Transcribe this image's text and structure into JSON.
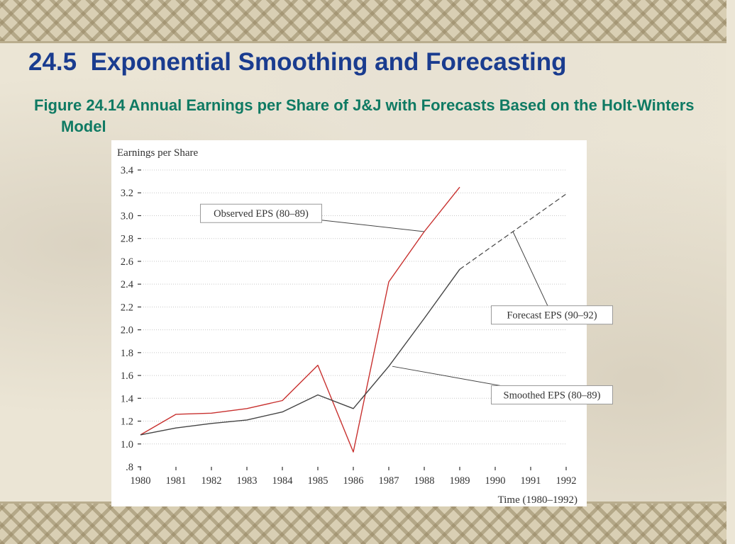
{
  "slide": {
    "title": "24.5  Exponential Smoothing and Forecasting",
    "caption": "Figure 24.14 Annual Earnings per Share of J&J with Forecasts Based on the Holt-Winters Model"
  },
  "chart_data": {
    "type": "line",
    "ylabel": "Earnings per Share",
    "xlabel": "Time (1980–1992)",
    "x": [
      1980,
      1981,
      1982,
      1983,
      1984,
      1985,
      1986,
      1987,
      1988,
      1989,
      1990,
      1991,
      1992
    ],
    "xlim": [
      1980,
      1992
    ],
    "ylim": [
      0.8,
      3.4
    ],
    "y_ticks": [
      0.8,
      1.0,
      1.2,
      1.4,
      1.6,
      1.8,
      2.0,
      2.2,
      2.4,
      2.6,
      2.8,
      3.0,
      3.2,
      3.4
    ],
    "y_tick_labels": [
      ".8",
      "1.0",
      "1.2",
      "1.4",
      "1.6",
      "1.8",
      "2.0",
      "2.2",
      "2.4",
      "2.6",
      "2.8",
      "3.0",
      "3.2",
      "3.4"
    ],
    "grid": true,
    "series": [
      {
        "name": "Observed EPS (80–89)",
        "color": "#c8312f",
        "style": "solid",
        "x": [
          1980,
          1981,
          1982,
          1983,
          1984,
          1985,
          1986,
          1987,
          1988,
          1989
        ],
        "values": [
          1.08,
          1.26,
          1.27,
          1.31,
          1.38,
          1.69,
          0.93,
          2.42,
          2.86,
          3.25
        ]
      },
      {
        "name": "Smoothed EPS (80–89)",
        "color": "#444444",
        "style": "solid",
        "x": [
          1980,
          1981,
          1982,
          1983,
          1984,
          1985,
          1986,
          1987,
          1988,
          1989
        ],
        "values": [
          1.08,
          1.14,
          1.18,
          1.21,
          1.28,
          1.43,
          1.31,
          1.68,
          2.1,
          2.53
        ]
      },
      {
        "name": "Forecast EPS (90–92)",
        "color": "#444444",
        "style": "dashed",
        "x": [
          1989,
          1990,
          1991,
          1992
        ],
        "values": [
          2.53,
          2.75,
          2.97,
          3.19
        ]
      }
    ],
    "annotations": [
      {
        "series": 0,
        "text": "Observed EPS (80–89)",
        "box_at": [
          1983.4,
          3.02
        ],
        "point_at": [
          1988.0,
          2.86
        ]
      },
      {
        "series": 2,
        "text": "Forecast EPS (90–92)",
        "box_at": [
          1991.6,
          2.13
        ],
        "point_at": [
          1990.5,
          2.86
        ]
      },
      {
        "series": 1,
        "text": "Smoothed EPS (80–89)",
        "box_at": [
          1991.6,
          1.43
        ],
        "point_at": [
          1987.1,
          1.68
        ]
      }
    ]
  }
}
